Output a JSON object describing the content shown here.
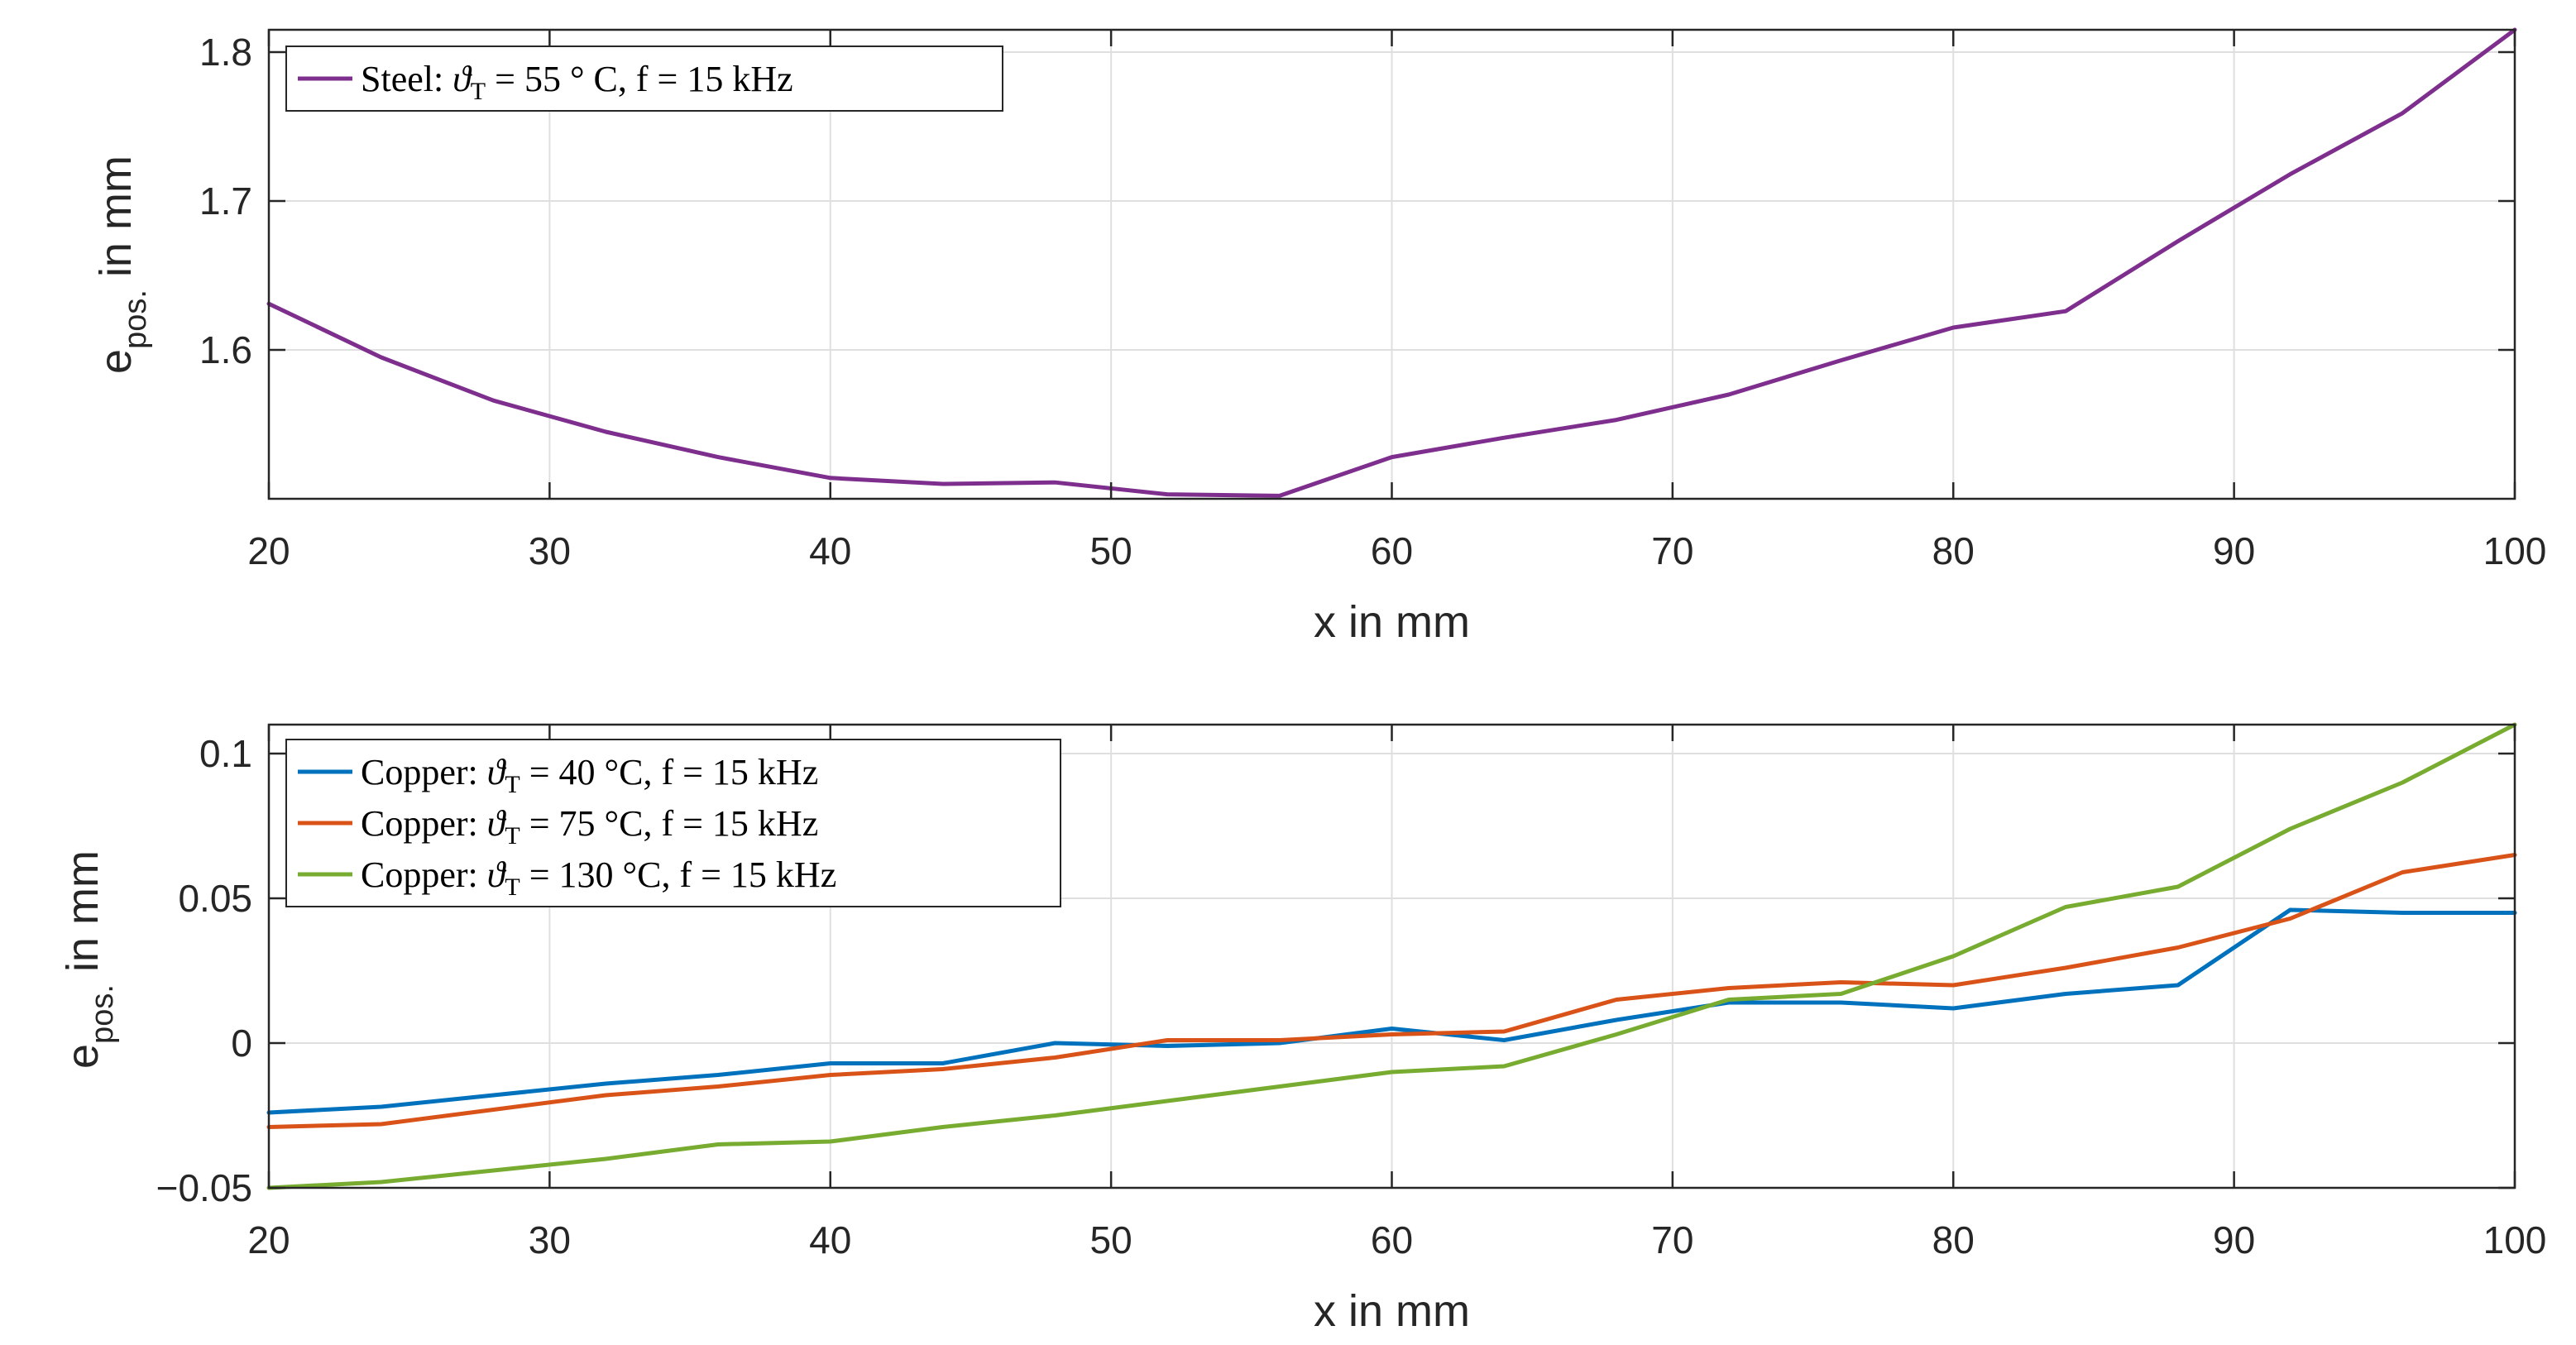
{
  "chart_data": [
    {
      "type": "line",
      "id": "steel",
      "xlabel": "x in mm",
      "ylabel": {
        "main": "e",
        "sub": "pos.",
        "tail": " in mm"
      },
      "xlim": [
        20,
        100
      ],
      "ylim": [
        1.5,
        1.815
      ],
      "xticks": [
        20,
        30,
        40,
        50,
        60,
        70,
        80,
        90,
        100
      ],
      "xtick_labels": [
        "20",
        "30",
        "40",
        "50",
        "60",
        "70",
        "80",
        "90",
        "100"
      ],
      "yticks": [
        1.6,
        1.7,
        1.8
      ],
      "ytick_labels": [
        "1.6",
        "1.7",
        "1.8"
      ],
      "grid": true,
      "legend_position": "top-left",
      "series": [
        {
          "name": "Steel: ϑT = 55 ° C, f = 15 kHz",
          "legend": {
            "pre": "Steel: ",
            "sym": "ϑ",
            "sub": "T",
            "post": " = 55 ° C, f = 15 kHz"
          },
          "color": "#7e2f8e",
          "x": [
            20,
            24,
            28,
            32,
            36,
            40,
            44,
            48,
            52,
            56,
            60,
            64,
            68,
            72,
            76,
            80,
            84,
            88,
            92,
            96,
            100
          ],
          "values": [
            1.631,
            1.595,
            1.566,
            1.545,
            1.528,
            1.514,
            1.51,
            1.511,
            1.503,
            1.502,
            1.528,
            1.541,
            1.553,
            1.57,
            1.593,
            1.615,
            1.626,
            1.673,
            1.718,
            1.759,
            1.815
          ]
        }
      ]
    },
    {
      "type": "line",
      "id": "copper",
      "xlabel": "x in mm",
      "ylabel": {
        "main": "e",
        "sub": "pos.",
        "tail": " in mm"
      },
      "xlim": [
        20,
        100
      ],
      "ylim": [
        -0.05,
        0.11
      ],
      "xticks": [
        20,
        30,
        40,
        50,
        60,
        70,
        80,
        90,
        100
      ],
      "xtick_labels": [
        "20",
        "30",
        "40",
        "50",
        "60",
        "70",
        "80",
        "90",
        "100"
      ],
      "yticks": [
        -0.05,
        0,
        0.05,
        0.1
      ],
      "ytick_labels": [
        "−0.05",
        "0",
        "0.05",
        "0.1"
      ],
      "grid": true,
      "legend_position": "top-left",
      "series": [
        {
          "name": "Copper: ϑT = 40 °C, f = 15 kHz",
          "legend": {
            "pre": "Copper: ",
            "sym": "ϑ",
            "sub": "T",
            "post": " = 40 °C, f = 15 kHz"
          },
          "color": "#0072bd",
          "x": [
            20,
            24,
            28,
            32,
            36,
            40,
            44,
            48,
            52,
            56,
            60,
            64,
            68,
            72,
            76,
            80,
            84,
            88,
            92,
            96,
            100
          ],
          "values": [
            -0.024,
            -0.022,
            -0.018,
            -0.014,
            -0.011,
            -0.007,
            -0.007,
            0.0,
            -0.001,
            0.0,
            0.005,
            0.001,
            0.008,
            0.014,
            0.014,
            0.012,
            0.017,
            0.02,
            0.046,
            0.045,
            0.045
          ]
        },
        {
          "name": "Copper: ϑT = 75 °C, f = 15 kHz",
          "legend": {
            "pre": "Copper: ",
            "sym": "ϑ",
            "sub": "T",
            "post": " = 75 °C, f = 15 kHz"
          },
          "color": "#d95319",
          "x": [
            20,
            24,
            28,
            32,
            36,
            40,
            44,
            48,
            52,
            56,
            60,
            64,
            68,
            72,
            76,
            80,
            84,
            88,
            92,
            96,
            100
          ],
          "values": [
            -0.029,
            -0.028,
            -0.023,
            -0.018,
            -0.015,
            -0.011,
            -0.009,
            -0.005,
            0.001,
            0.001,
            0.003,
            0.004,
            0.015,
            0.019,
            0.021,
            0.02,
            0.026,
            0.033,
            0.043,
            0.059,
            0.065
          ]
        },
        {
          "name": "Copper: ϑT = 130 °C, f = 15 kHz",
          "legend": {
            "pre": "Copper: ",
            "sym": "ϑ",
            "sub": "T",
            "post": " = 130 °C, f = 15 kHz"
          },
          "color": "#77ac30",
          "x": [
            20,
            24,
            28,
            32,
            36,
            40,
            44,
            48,
            52,
            56,
            60,
            64,
            68,
            72,
            76,
            80,
            84,
            88,
            92,
            96,
            100
          ],
          "values": [
            -0.05,
            -0.048,
            -0.044,
            -0.04,
            -0.035,
            -0.034,
            -0.029,
            -0.025,
            -0.02,
            -0.015,
            -0.01,
            -0.008,
            0.003,
            0.015,
            0.017,
            0.03,
            0.047,
            0.054,
            0.074,
            0.09,
            0.11
          ]
        }
      ]
    }
  ]
}
